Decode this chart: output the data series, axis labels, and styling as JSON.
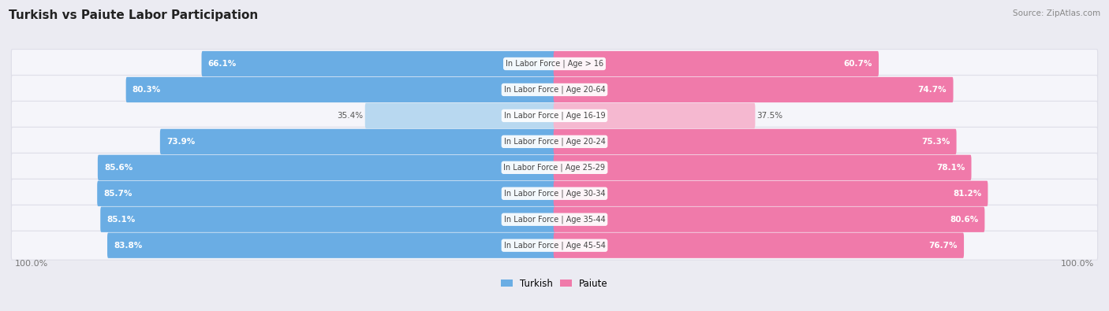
{
  "title": "Turkish vs Paiute Labor Participation",
  "source": "Source: ZipAtlas.com",
  "categories": [
    "In Labor Force | Age > 16",
    "In Labor Force | Age 20-64",
    "In Labor Force | Age 16-19",
    "In Labor Force | Age 20-24",
    "In Labor Force | Age 25-29",
    "In Labor Force | Age 30-34",
    "In Labor Force | Age 35-44",
    "In Labor Force | Age 45-54"
  ],
  "turkish_values": [
    66.1,
    80.3,
    35.4,
    73.9,
    85.6,
    85.7,
    85.1,
    83.8
  ],
  "paiute_values": [
    60.7,
    74.7,
    37.5,
    75.3,
    78.1,
    81.2,
    80.6,
    76.7
  ],
  "turkish_color": "#6aade4",
  "turkish_color_light": "#b8d8f0",
  "paiute_color": "#f07aaa",
  "paiute_color_light": "#f5b8d0",
  "bg_color": "#ebebf2",
  "row_bg": "#f5f5fa",
  "row_border": "#dedee8",
  "text_white": "#ffffff",
  "text_dark": "#555555",
  "text_label": "#444444",
  "bottom_label_color": "#777777",
  "figsize": [
    14.06,
    3.95
  ],
  "dpi": 100
}
